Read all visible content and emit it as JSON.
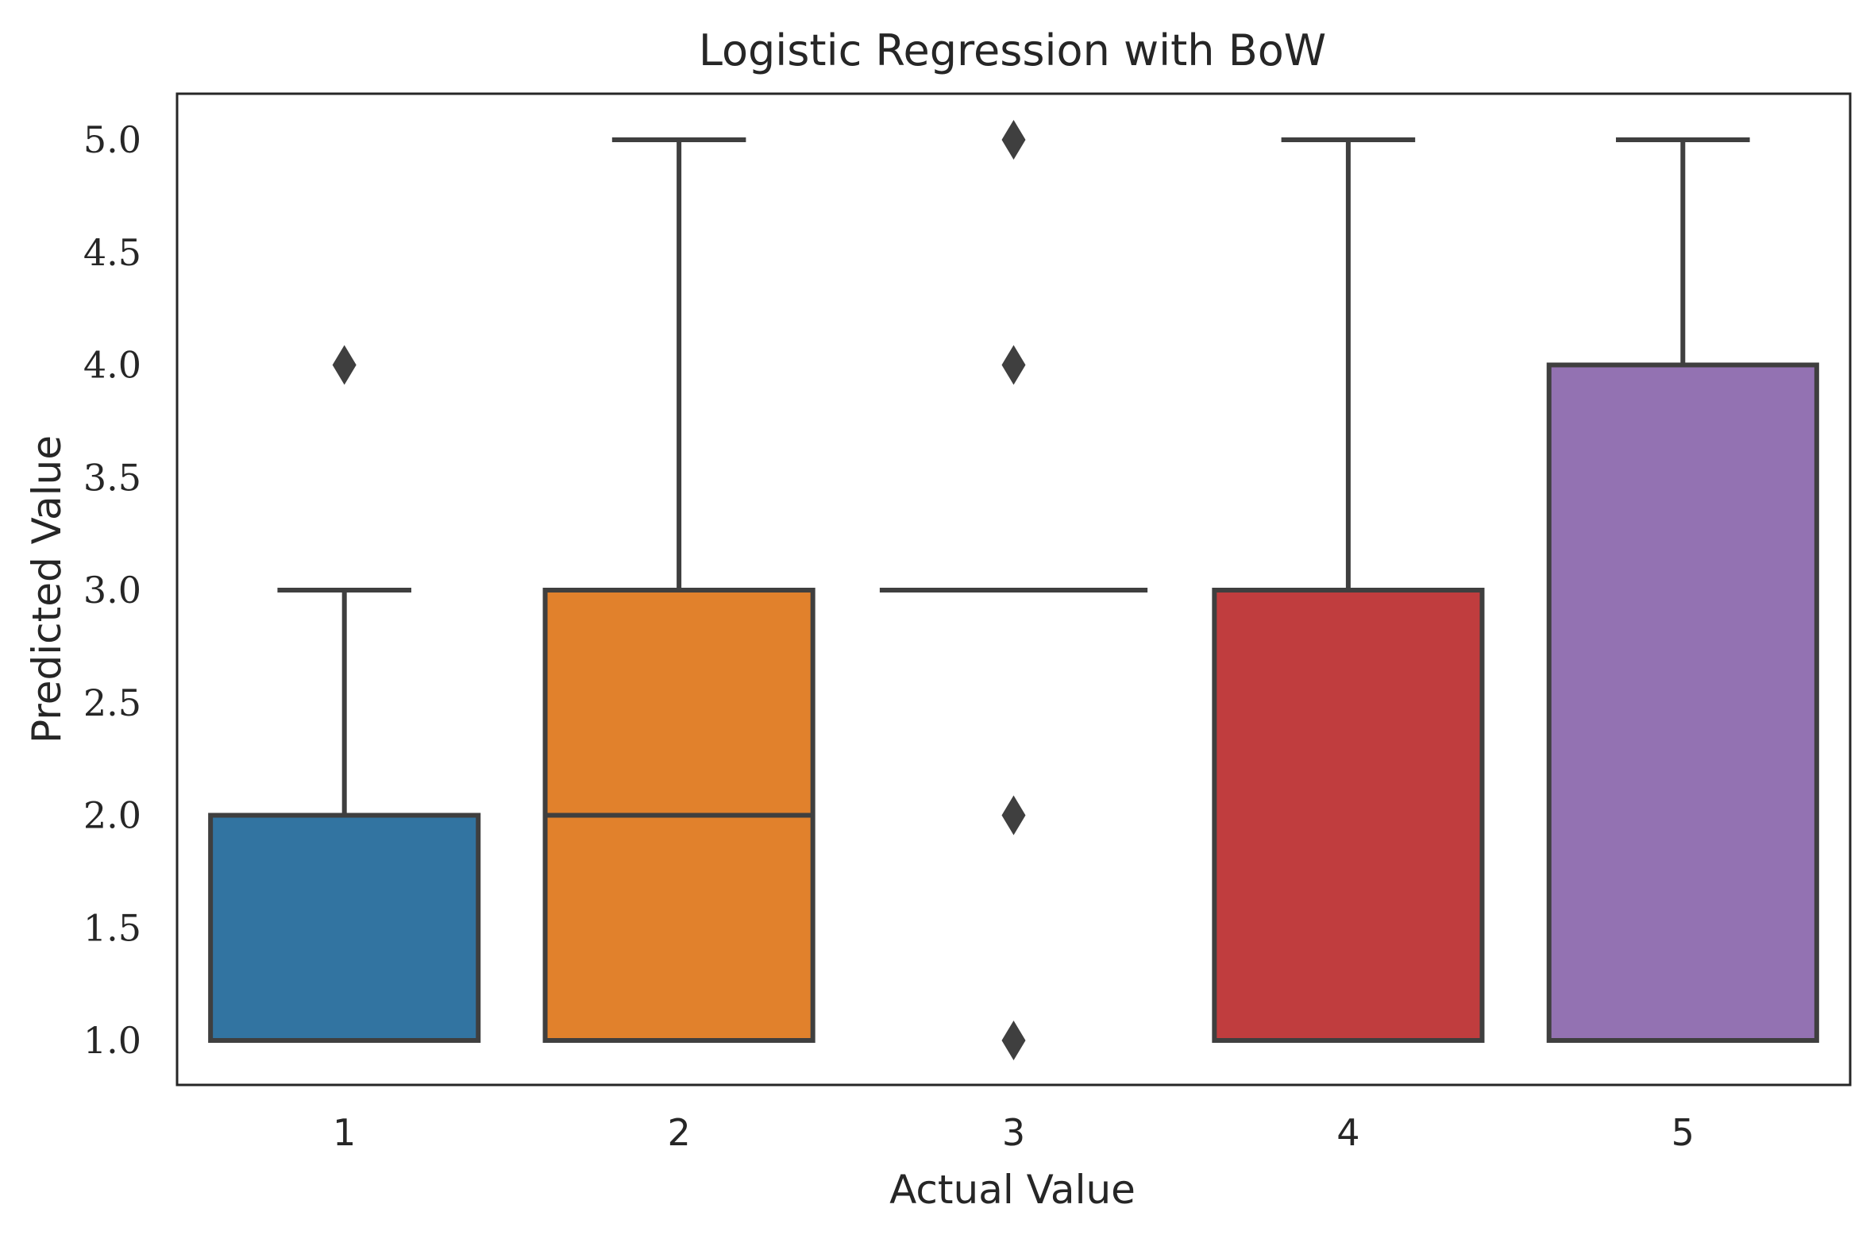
{
  "chart_data": {
    "type": "box",
    "title": "Logistic Regression with BoW",
    "xlabel": "Actual Value",
    "ylabel": "Predicted Value",
    "ylim": [
      0.8,
      5.2
    ],
    "yticks": [
      "1.0",
      "1.5",
      "2.0",
      "2.5",
      "3.0",
      "3.5",
      "4.0",
      "4.5",
      "5.0"
    ],
    "categories": [
      "1",
      "2",
      "3",
      "4",
      "5"
    ],
    "grid": false,
    "legend": "none",
    "boxes": [
      {
        "category": "1",
        "whisker_low": 1,
        "q1": 1,
        "median": 1,
        "q3": 2,
        "whisker_high": 3,
        "outliers": [
          4
        ],
        "color": "#3274a1"
      },
      {
        "category": "2",
        "whisker_low": 1,
        "q1": 1,
        "median": 2,
        "q3": 3,
        "whisker_high": 5,
        "outliers": [],
        "color": "#e1812c"
      },
      {
        "category": "3",
        "whisker_low": 3,
        "q1": 3,
        "median": 3,
        "q3": 3,
        "whisker_high": 3,
        "outliers": [
          1,
          2,
          4,
          5
        ],
        "color": "#3a923a"
      },
      {
        "category": "4",
        "whisker_low": 1,
        "q1": 1,
        "median": 3,
        "q3": 3,
        "whisker_high": 5,
        "outliers": [],
        "color": "#c03d3e"
      },
      {
        "category": "5",
        "whisker_low": 1,
        "q1": 1,
        "median": 4,
        "q3": 4,
        "whisker_high": 5,
        "outliers": [],
        "color": "#9372b2"
      }
    ],
    "line_color": "#3f3f3f"
  }
}
